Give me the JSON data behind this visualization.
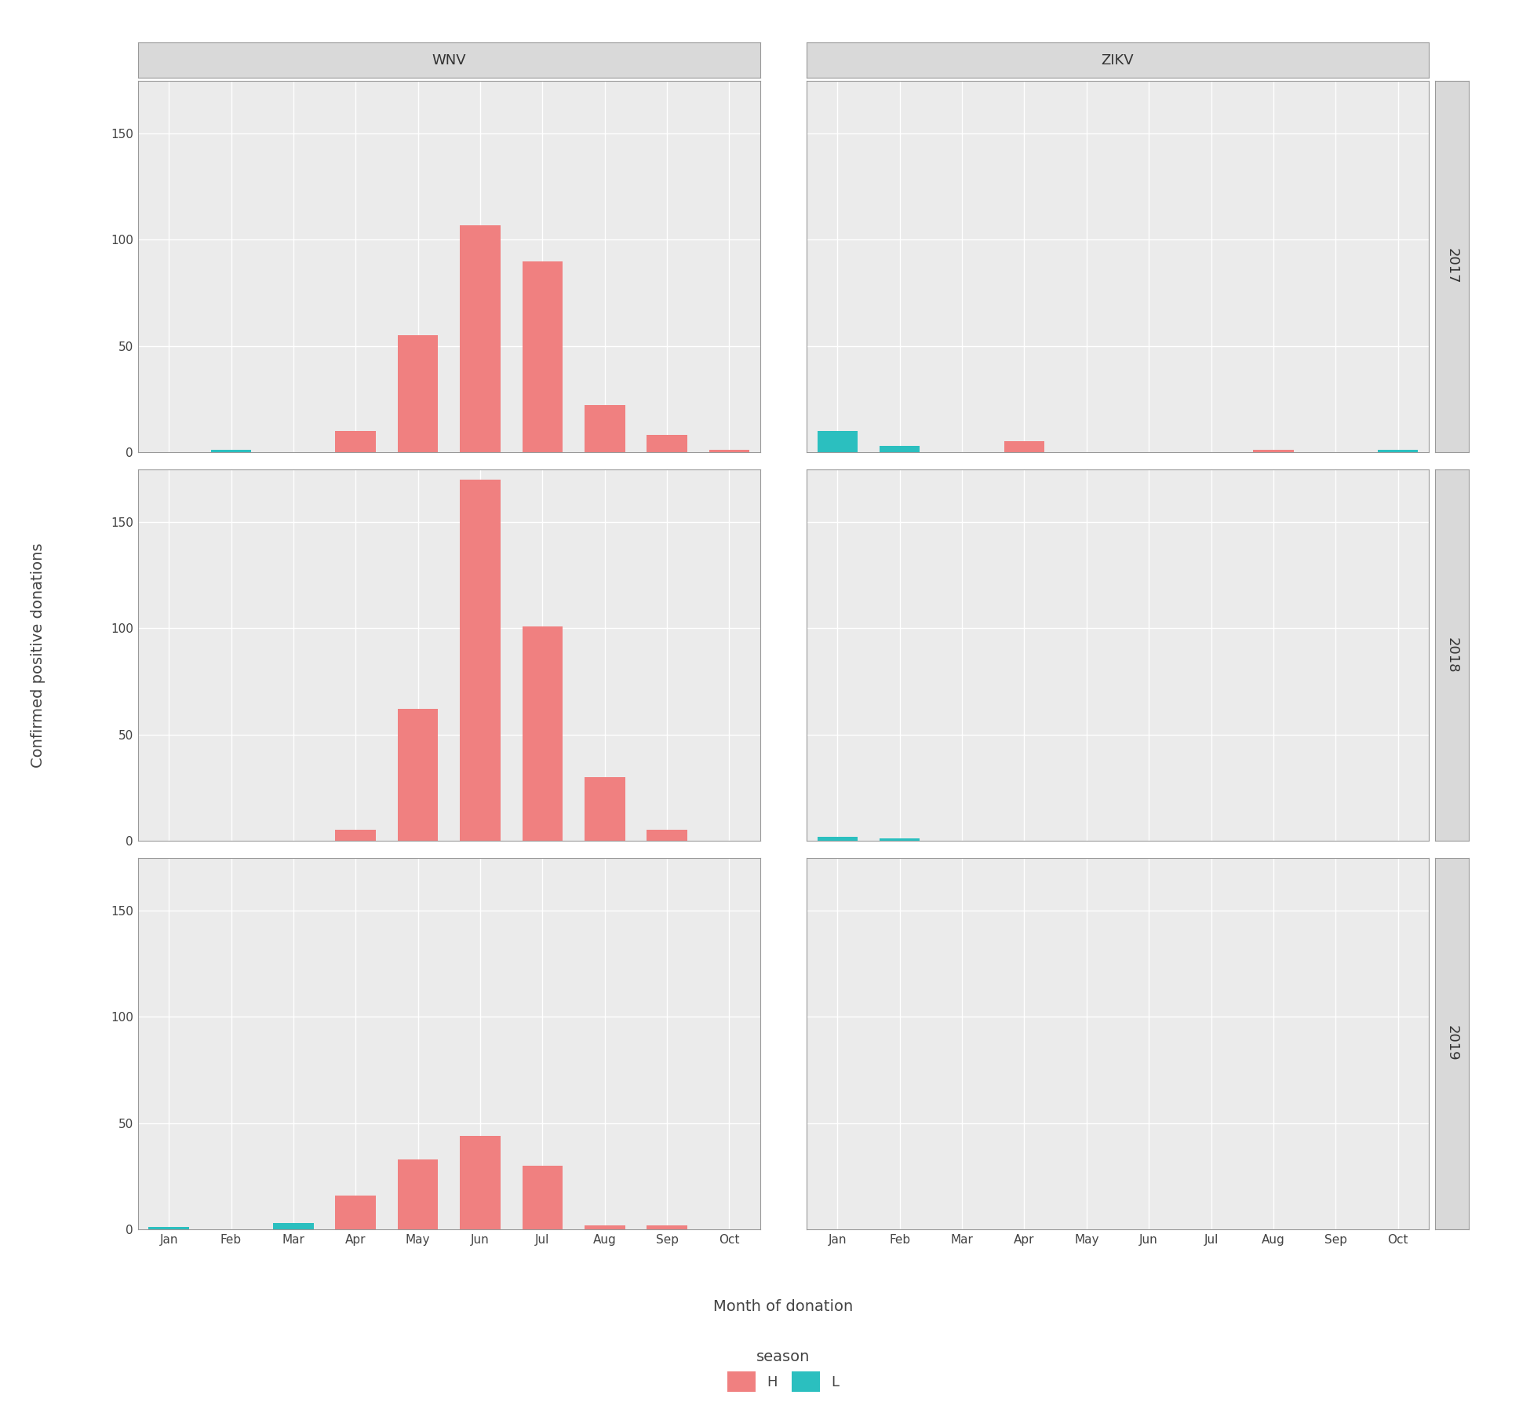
{
  "viruses": [
    "WNV",
    "ZIKV"
  ],
  "years": [
    "2017",
    "2018",
    "2019"
  ],
  "months": [
    "Jan",
    "Feb",
    "Mar",
    "Apr",
    "May",
    "Jun",
    "Jul",
    "Aug",
    "Sep",
    "Oct"
  ],
  "data": {
    "WNV": {
      "2017": {
        "H": {
          "Apr": 10,
          "May": 55,
          "Jun": 107,
          "Jul": 90,
          "Aug": 22,
          "Sep": 8,
          "Oct": 1
        },
        "L": {
          "Feb": 1
        }
      },
      "2018": {
        "H": {
          "Apr": 5,
          "May": 62,
          "Jun": 170,
          "Jul": 101,
          "Aug": 30,
          "Sep": 5
        },
        "L": {}
      },
      "2019": {
        "H": {
          "Apr": 16,
          "May": 33,
          "Jun": 44,
          "Jul": 30,
          "Aug": 2,
          "Sep": 2
        },
        "L": {
          "Jan": 1,
          "Mar": 3
        }
      }
    },
    "ZIKV": {
      "2017": {
        "H": {
          "Apr": 5,
          "Aug": 1
        },
        "L": {
          "Jan": 10,
          "Feb": 3,
          "Oct": 1
        }
      },
      "2018": {
        "H": {},
        "L": {
          "Jan": 2,
          "Feb": 1
        }
      },
      "2019": {
        "H": {},
        "L": {}
      }
    }
  },
  "color_H": "#F08080",
  "color_L": "#2BBFBF",
  "bg_panel": "#EBEBEB",
  "bg_strip": "#D9D9D9",
  "grid_color": "#FFFFFF",
  "strip_text_color": "#333333",
  "axis_text_color": "#444444",
  "ylim": [
    0,
    175
  ],
  "yticks": [
    0,
    50,
    100,
    150
  ],
  "months_display": [
    "Jan",
    "Feb",
    "Mar",
    "Apr",
    "May",
    "Jun",
    "Jul",
    "Aug",
    "Sep",
    "Oct"
  ],
  "xlabel": "Month of donation",
  "ylabel": "Confirmed positive donations",
  "legend_title": "season",
  "legend_labels": [
    "H",
    "L"
  ],
  "strip_fontsize": 13,
  "axis_label_fontsize": 14,
  "tick_fontsize": 11,
  "legend_fontsize": 13,
  "legend_title_fontsize": 14
}
